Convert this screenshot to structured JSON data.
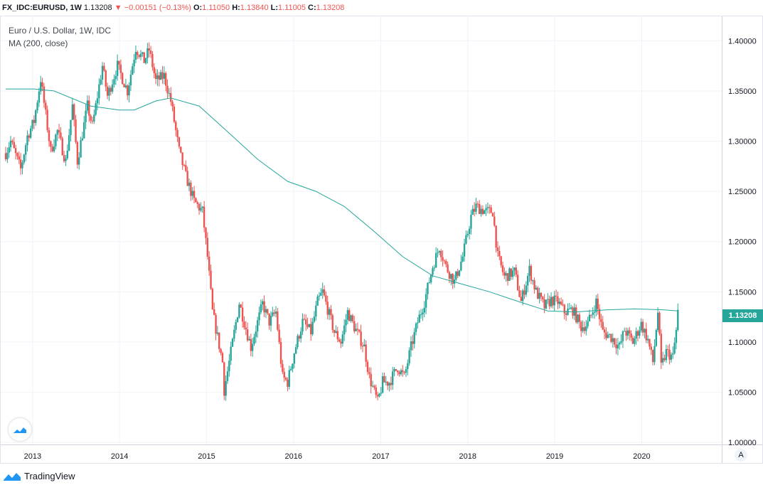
{
  "header": {
    "symbol": "FX_IDC:EURUSD, 1W",
    "last": "1.13208",
    "change": "−0.00151 (−0.13%)",
    "o_label": "O:",
    "o_value": "1.11050",
    "h_label": "H:",
    "h_value": "1.13840",
    "l_label": "L:",
    "l_value": "1.11005",
    "c_label": "C:",
    "c_value": "1.13208"
  },
  "legend": {
    "title": "Euro / U.S. Dollar, 1W, IDC",
    "ma": "MA (200, close)"
  },
  "price_tag": "1.13208",
  "auto_scale_label": "A",
  "footer": {
    "brand": "TradingView"
  },
  "colors": {
    "up": "#26a69a",
    "down": "#ef5350",
    "ma": "#26a69a",
    "grid": "#f0f3fa"
  },
  "chart_data": {
    "type": "candlestick",
    "x_start": "2012-09-10",
    "interval": "1W",
    "xlim": [
      "2012-09-10",
      "2020-06-15"
    ],
    "ylim": [
      0.998,
      1.425
    ],
    "y_ticks": [
      "1.00000",
      "1.05000",
      "1.10000",
      "1.15000",
      "1.20000",
      "1.25000",
      "1.30000",
      "1.35000",
      "1.40000"
    ],
    "x_ticks": [
      "2013",
      "2014",
      "2015",
      "2016",
      "2017",
      "2018",
      "2019",
      "2020"
    ],
    "x_tick_dates": [
      "2013-01-01",
      "2014-01-01",
      "2015-01-01",
      "2016-01-01",
      "2017-01-01",
      "2018-01-01",
      "2019-01-01",
      "2020-01-01"
    ],
    "grid": true,
    "close_path": [
      [
        "2012-09-10",
        1.288
      ],
      [
        "2012-10-01",
        1.3
      ],
      [
        "2012-11-12",
        1.272
      ],
      [
        "2012-12-10",
        1.305
      ],
      [
        "2013-01-07",
        1.32
      ],
      [
        "2013-02-04",
        1.362
      ],
      [
        "2013-03-18",
        1.29
      ],
      [
        "2013-04-15",
        1.31
      ],
      [
        "2013-05-20",
        1.28
      ],
      [
        "2013-06-17",
        1.335
      ],
      [
        "2013-07-08",
        1.28
      ],
      [
        "2013-08-19",
        1.335
      ],
      [
        "2013-09-09",
        1.315
      ],
      [
        "2013-10-21",
        1.375
      ],
      [
        "2013-11-11",
        1.345
      ],
      [
        "2013-12-23",
        1.375
      ],
      [
        "2014-02-03",
        1.35
      ],
      [
        "2014-03-10",
        1.393
      ],
      [
        "2014-04-14",
        1.38
      ],
      [
        "2014-05-05",
        1.391
      ],
      [
        "2014-06-02",
        1.36
      ],
      [
        "2014-07-07",
        1.365
      ],
      [
        "2014-08-04",
        1.34
      ],
      [
        "2014-09-08",
        1.29
      ],
      [
        "2014-10-06",
        1.265
      ],
      [
        "2014-11-10",
        1.24
      ],
      [
        "2014-12-15",
        1.23
      ],
      [
        "2015-01-05",
        1.185
      ],
      [
        "2015-01-26",
        1.13
      ],
      [
        "2015-03-09",
        1.08
      ],
      [
        "2015-03-16",
        1.052
      ],
      [
        "2015-04-06",
        1.08
      ],
      [
        "2015-05-18",
        1.139
      ],
      [
        "2015-06-08",
        1.12
      ],
      [
        "2015-07-06",
        1.095
      ],
      [
        "2015-08-24",
        1.138
      ],
      [
        "2015-09-21",
        1.12
      ],
      [
        "2015-10-19",
        1.13
      ],
      [
        "2015-11-16",
        1.065
      ],
      [
        "2015-12-07",
        1.06
      ],
      [
        "2016-01-04",
        1.09
      ],
      [
        "2016-02-08",
        1.12
      ],
      [
        "2016-03-14",
        1.11
      ],
      [
        "2016-04-11",
        1.14
      ],
      [
        "2016-05-02",
        1.15
      ],
      [
        "2016-06-20",
        1.11
      ],
      [
        "2016-07-18",
        1.1
      ],
      [
        "2016-08-15",
        1.13
      ],
      [
        "2016-09-12",
        1.115
      ],
      [
        "2016-10-24",
        1.095
      ],
      [
        "2016-11-14",
        1.065
      ],
      [
        "2016-12-19",
        1.04
      ],
      [
        "2017-01-09",
        1.06
      ],
      [
        "2017-02-06",
        1.06
      ],
      [
        "2017-03-13",
        1.075
      ],
      [
        "2017-04-10",
        1.065
      ],
      [
        "2017-05-08",
        1.095
      ],
      [
        "2017-06-05",
        1.12
      ],
      [
        "2017-07-03",
        1.14
      ],
      [
        "2017-08-07",
        1.175
      ],
      [
        "2017-09-04",
        1.195
      ],
      [
        "2017-10-02",
        1.175
      ],
      [
        "2017-11-06",
        1.16
      ],
      [
        "2017-12-11",
        1.185
      ],
      [
        "2018-01-15",
        1.225
      ],
      [
        "2018-02-05",
        1.235
      ],
      [
        "2018-03-19",
        1.23
      ],
      [
        "2018-04-16",
        1.23
      ],
      [
        "2018-05-07",
        1.185
      ],
      [
        "2018-06-04",
        1.165
      ],
      [
        "2018-07-16",
        1.17
      ],
      [
        "2018-08-13",
        1.14
      ],
      [
        "2018-09-17",
        1.172
      ],
      [
        "2018-10-15",
        1.15
      ],
      [
        "2018-11-19",
        1.135
      ],
      [
        "2018-12-17",
        1.142
      ],
      [
        "2019-01-14",
        1.14
      ],
      [
        "2019-02-11",
        1.13
      ],
      [
        "2019-03-18",
        1.132
      ],
      [
        "2019-04-22",
        1.115
      ],
      [
        "2019-05-20",
        1.118
      ],
      [
        "2019-06-24",
        1.14
      ],
      [
        "2019-07-22",
        1.11
      ],
      [
        "2019-08-26",
        1.105
      ],
      [
        "2019-09-30",
        1.095
      ],
      [
        "2019-10-21",
        1.112
      ],
      [
        "2019-11-25",
        1.1
      ],
      [
        "2019-12-30",
        1.118
      ],
      [
        "2020-01-27",
        1.102
      ],
      [
        "2020-02-17",
        1.08
      ],
      [
        "2020-03-09",
        1.13
      ],
      [
        "2020-03-23",
        1.075
      ],
      [
        "2020-04-13",
        1.09
      ],
      [
        "2020-05-11",
        1.085
      ],
      [
        "2020-05-25",
        1.111
      ],
      [
        "2020-06-01",
        1.132
      ]
    ],
    "ma_200": [
      [
        "2012-09-10",
        1.352
      ],
      [
        "2013-01-07",
        1.352
      ],
      [
        "2013-04-01",
        1.35
      ],
      [
        "2013-09-02",
        1.335
      ],
      [
        "2013-12-30",
        1.331
      ],
      [
        "2014-03-03",
        1.331
      ],
      [
        "2014-06-02",
        1.34
      ],
      [
        "2014-08-04",
        1.343
      ],
      [
        "2014-12-01",
        1.335
      ],
      [
        "2015-04-06",
        1.308
      ],
      [
        "2015-08-03",
        1.282
      ],
      [
        "2015-12-07",
        1.26
      ],
      [
        "2016-04-04",
        1.25
      ],
      [
        "2016-08-01",
        1.235
      ],
      [
        "2016-12-05",
        1.21
      ],
      [
        "2017-04-03",
        1.185
      ],
      [
        "2017-08-07",
        1.166
      ],
      [
        "2017-12-04",
        1.158
      ],
      [
        "2018-04-02",
        1.15
      ],
      [
        "2018-08-06",
        1.14
      ],
      [
        "2018-12-03",
        1.131
      ],
      [
        "2019-04-01",
        1.13
      ],
      [
        "2019-08-05",
        1.132
      ],
      [
        "2019-12-02",
        1.133
      ],
      [
        "2020-04-06",
        1.132
      ],
      [
        "2020-06-01",
        1.131
      ]
    ]
  }
}
